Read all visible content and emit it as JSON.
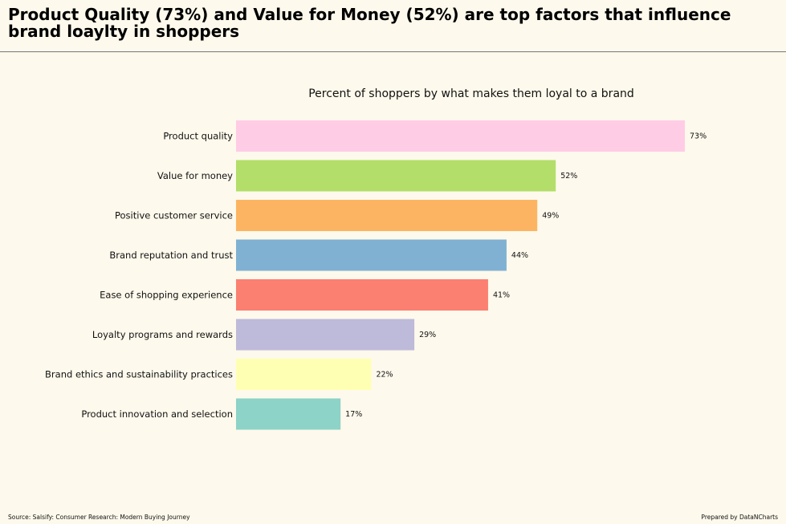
{
  "headline": "Product Quality (73%) and Value for Money (52%) are top factors that influence brand loaylty in shoppers",
  "footer": {
    "source": "Source: Salsify: Consumer Research: Modern Buying Journey",
    "credit": "Prepared by DataNCharts"
  },
  "chart_data": {
    "type": "bar",
    "orientation": "horizontal",
    "title": "Percent of shoppers by what makes them loyal to a brand",
    "xlabel": "",
    "ylabel": "",
    "xlim": [
      0,
      75
    ],
    "grid": false,
    "categories": [
      "Product quality",
      "Value for money",
      "Positive customer service",
      "Brand reputation and trust",
      "Ease of shopping experience",
      "Loyalty programs and rewards",
      "Brand ethics and sustainability practices",
      "Product innovation and selection"
    ],
    "values": [
      73,
      52,
      49,
      44,
      41,
      29,
      22,
      17
    ],
    "labels": [
      "73%",
      "52%",
      "49%",
      "44%",
      "41%",
      "29%",
      "22%",
      "17%"
    ],
    "colors": [
      "#ffcce6",
      "#b3de69",
      "#fdb462",
      "#80b1d3",
      "#fb8072",
      "#bebada",
      "#ffffb3",
      "#8dd3c7"
    ]
  }
}
